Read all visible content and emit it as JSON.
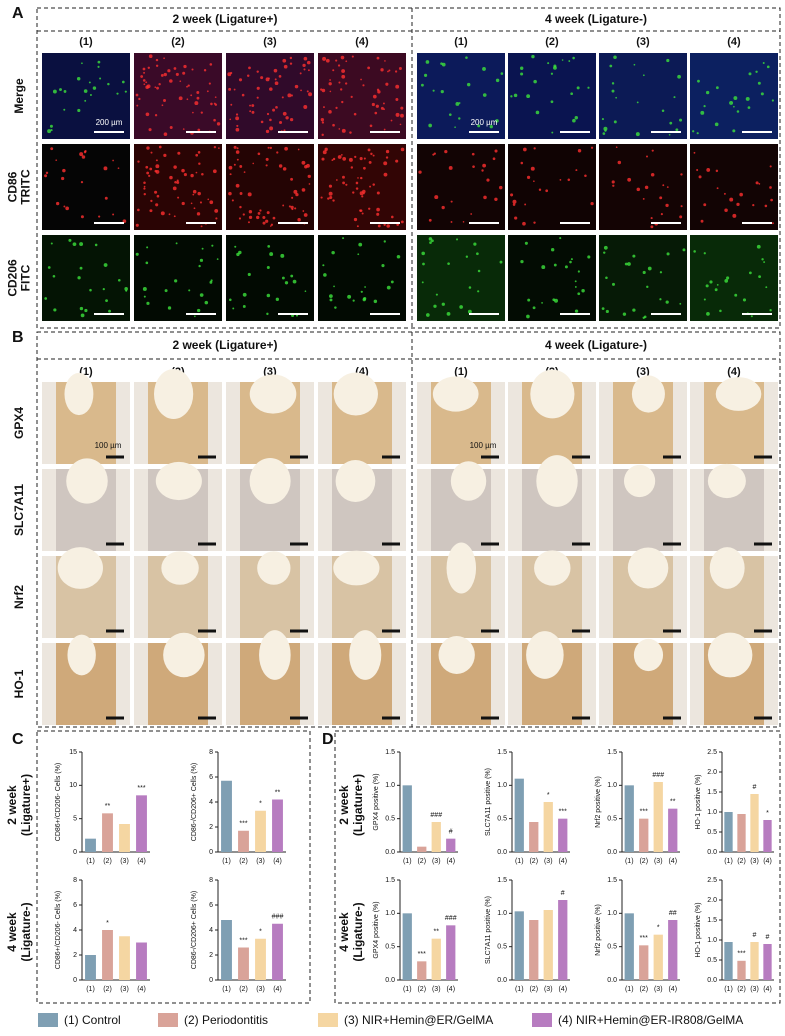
{
  "panel_a": {
    "label": "A",
    "groups": [
      "2 week (Ligature+)",
      "4 week (Ligature-)"
    ],
    "columns": [
      "(1)",
      "(2)",
      "(3)",
      "(4)"
    ],
    "rows": [
      [
        "Merge"
      ],
      [
        "CD86",
        "TRITC"
      ],
      [
        "CD206",
        "FITC"
      ]
    ],
    "scale_bar": "200 µm"
  },
  "panel_b": {
    "label": "B",
    "groups": [
      "2 week (Ligature+)",
      "4 week (Ligature-)"
    ],
    "columns": [
      "(1)",
      "(2)",
      "(3)",
      "(4)"
    ],
    "rows": [
      [
        "GPX4"
      ],
      [
        "SLC7A11"
      ],
      [
        "Nrf2"
      ],
      [
        "HO-1"
      ]
    ],
    "scale_bar": "100 µm"
  },
  "panel_c": {
    "label": "C",
    "rows": [
      [
        "2 week",
        "(Ligature+)"
      ],
      [
        "4 week",
        "(Ligature-)"
      ]
    ]
  },
  "panel_d": {
    "label": "D",
    "rows": [
      [
        "2 week",
        "(Ligature+)"
      ],
      [
        "4 week",
        "(Ligature-)"
      ]
    ]
  },
  "legend": [
    {
      "label": "(1) Control",
      "color": "#7f9fb3"
    },
    {
      "label": "(2) Periodontitis",
      "color": "#d9a399"
    },
    {
      "label": "(3) NIR+Hemin@ER/GelMA",
      "color": "#f5d6a2"
    },
    {
      "label": "(4) NIR+Hemin@ER-IR808/GelMA",
      "color": "#b77cc0"
    }
  ],
  "chart_data": [
    {
      "type": "bar",
      "ylabel": "CD86+/CD206- Cells (%)",
      "categories": [
        "(1)",
        "(2)",
        "(3)",
        "(4)"
      ],
      "values": [
        2,
        5.8,
        4.2,
        8.5
      ],
      "sig": [
        null,
        "**",
        null,
        "***"
      ],
      "ylim": [
        0,
        15
      ],
      "yticks": [
        0,
        5,
        10,
        15
      ]
    },
    {
      "type": "bar",
      "ylabel": "CD86-/CD206+ Cells (%)",
      "categories": [
        "(1)",
        "(2)",
        "(3)",
        "(4)"
      ],
      "values": [
        5.7,
        1.7,
        3.3,
        4.2
      ],
      "sig": [
        null,
        "***",
        "*",
        "**"
      ],
      "ylim": [
        0,
        8
      ],
      "yticks": [
        0,
        2,
        4,
        6,
        8
      ]
    },
    {
      "type": "bar",
      "ylabel": "CD86+/CD206- Cells (%)",
      "categories": [
        "(1)",
        "(2)",
        "(3)",
        "(4)"
      ],
      "values": [
        2,
        4,
        3.5,
        3
      ],
      "sig": [
        null,
        "*",
        null,
        null
      ],
      "ylim": [
        0,
        8
      ],
      "yticks": [
        0,
        2,
        4,
        6,
        8
      ]
    },
    {
      "type": "bar",
      "ylabel": "CD86-/CD206+ Cells (%)",
      "categories": [
        "(1)",
        "(2)",
        "(3)",
        "(4)"
      ],
      "values": [
        4.8,
        2.6,
        3.3,
        4.5
      ],
      "sig": [
        null,
        "***",
        "*",
        "###"
      ],
      "ylim": [
        0,
        8
      ],
      "yticks": [
        0,
        2,
        4,
        6,
        8
      ]
    },
    {
      "type": "bar",
      "ylabel": "GPX4 positive (%)",
      "categories": [
        "(1)",
        "(2)",
        "(3)",
        "(4)"
      ],
      "values": [
        1.0,
        0.08,
        0.45,
        0.2
      ],
      "sig": [
        null,
        null,
        "###",
        "#"
      ],
      "ylim": [
        0,
        1.5
      ],
      "yticks": [
        {
          "value": 0,
          "label": "0.0"
        },
        0.5,
        {
          "value": 1,
          "label": "1.0"
        },
        1.5
      ]
    },
    {
      "type": "bar",
      "ylabel": "SLC7A11 positive (%)",
      "categories": [
        "(1)",
        "(2)",
        "(3)",
        "(4)"
      ],
      "values": [
        1.1,
        0.45,
        0.75,
        0.5
      ],
      "sig": [
        null,
        null,
        "*",
        "***"
      ],
      "ylim": [
        0,
        1.5
      ],
      "yticks": [
        {
          "value": 0,
          "label": "0.0"
        },
        0.5,
        {
          "value": 1,
          "label": "1.0"
        },
        1.5
      ]
    },
    {
      "type": "bar",
      "ylabel": "Nrf2 positive (%)",
      "categories": [
        "(1)",
        "(2)",
        "(3)",
        "(4)"
      ],
      "values": [
        1.0,
        0.5,
        1.05,
        0.65
      ],
      "sig": [
        null,
        "***",
        "###",
        "**"
      ],
      "ylim": [
        0,
        1.5
      ],
      "yticks": [
        {
          "value": 0,
          "label": "0.0"
        },
        0.5,
        {
          "value": 1,
          "label": "1.0"
        },
        1.5
      ]
    },
    {
      "type": "bar",
      "ylabel": "HO-1 positive (%)",
      "categories": [
        "(1)",
        "(2)",
        "(3)",
        "(4)"
      ],
      "values": [
        1.0,
        0.95,
        1.45,
        0.8
      ],
      "sig": [
        null,
        null,
        "#",
        "*"
      ],
      "ylim": [
        0,
        2.5
      ],
      "yticks": [
        {
          "value": 0,
          "label": "0.0"
        },
        0.5,
        {
          "value": 1,
          "label": "1.0"
        },
        1.5,
        {
          "value": 2,
          "label": "2.0"
        },
        2.5
      ]
    },
    {
      "type": "bar",
      "ylabel": "GPX4 positive (%)",
      "categories": [
        "(1)",
        "(2)",
        "(3)",
        "(4)"
      ],
      "values": [
        1.0,
        0.28,
        0.62,
        0.82
      ],
      "sig": [
        null,
        "***",
        "**",
        "###"
      ],
      "ylim": [
        0,
        1.5
      ],
      "yticks": [
        {
          "value": 0,
          "label": "0.0"
        },
        0.5,
        {
          "value": 1,
          "label": "1.0"
        },
        1.5
      ]
    },
    {
      "type": "bar",
      "ylabel": "SLC7A11 positive (%)",
      "categories": [
        "(1)",
        "(2)",
        "(3)",
        "(4)"
      ],
      "values": [
        1.03,
        0.9,
        1.05,
        1.2
      ],
      "sig": [
        null,
        null,
        null,
        "#"
      ],
      "ylim": [
        0,
        1.5
      ],
      "yticks": [
        {
          "value": 0,
          "label": "0.0"
        },
        0.5,
        {
          "value": 1,
          "label": "1.0"
        },
        1.5
      ]
    },
    {
      "type": "bar",
      "ylabel": "Nrf2 positive (%)",
      "categories": [
        "(1)",
        "(2)",
        "(3)",
        "(4)"
      ],
      "values": [
        1.0,
        0.52,
        0.68,
        0.9
      ],
      "sig": [
        null,
        "***",
        "*",
        "##"
      ],
      "ylim": [
        0,
        1.5
      ],
      "yticks": [
        {
          "value": 0,
          "label": "0.0"
        },
        0.5,
        {
          "value": 1,
          "label": "1.0"
        },
        1.5
      ]
    },
    {
      "type": "bar",
      "ylabel": "HO-1 positive (%)",
      "categories": [
        "(1)",
        "(2)",
        "(3)",
        "(4)"
      ],
      "values": [
        0.95,
        0.48,
        0.95,
        0.9
      ],
      "sig": [
        null,
        "***",
        "#",
        "#"
      ],
      "ylim": [
        0,
        2.5
      ],
      "yticks": [
        {
          "value": 0,
          "label": "0.0"
        },
        0.5,
        {
          "value": 1,
          "label": "1.0"
        },
        1.5,
        {
          "value": 2,
          "label": "2.0"
        },
        2.5
      ]
    }
  ]
}
